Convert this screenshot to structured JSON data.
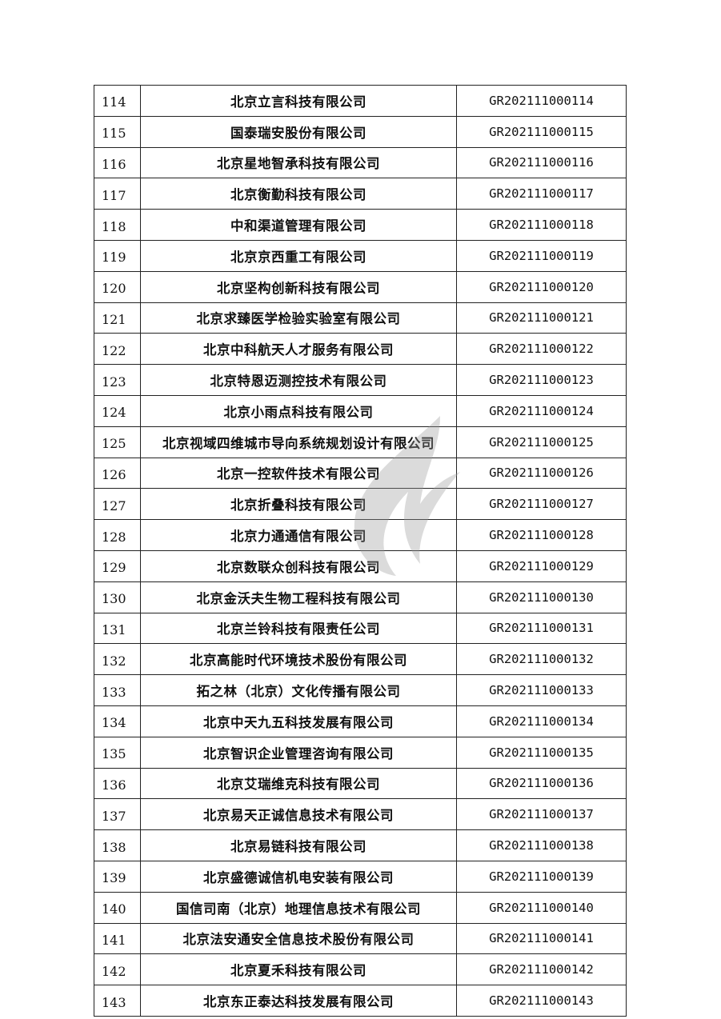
{
  "table": {
    "rows": [
      {
        "no": "114",
        "name": "北京立言科技有限公司",
        "code": "GR202111000114"
      },
      {
        "no": "115",
        "name": "国泰瑞安股份有限公司",
        "code": "GR202111000115"
      },
      {
        "no": "116",
        "name": "北京星地智承科技有限公司",
        "code": "GR202111000116"
      },
      {
        "no": "117",
        "name": "北京衡勤科技有限公司",
        "code": "GR202111000117"
      },
      {
        "no": "118",
        "name": "中和渠道管理有限公司",
        "code": "GR202111000118"
      },
      {
        "no": "119",
        "name": "北京京西重工有限公司",
        "code": "GR202111000119"
      },
      {
        "no": "120",
        "name": "北京坚构创新科技有限公司",
        "code": "GR202111000120"
      },
      {
        "no": "121",
        "name": "北京求臻医学检验实验室有限公司",
        "code": "GR202111000121"
      },
      {
        "no": "122",
        "name": "北京中科航天人才服务有限公司",
        "code": "GR202111000122"
      },
      {
        "no": "123",
        "name": "北京特恩迈测控技术有限公司",
        "code": "GR202111000123"
      },
      {
        "no": "124",
        "name": "北京小雨点科技有限公司",
        "code": "GR202111000124"
      },
      {
        "no": "125",
        "name": "北京视域四维城市导向系统规划设计有限公司",
        "code": "GR202111000125"
      },
      {
        "no": "126",
        "name": "北京一控软件技术有限公司",
        "code": "GR202111000126"
      },
      {
        "no": "127",
        "name": "北京折叠科技有限公司",
        "code": "GR202111000127"
      },
      {
        "no": "128",
        "name": "北京力通通信有限公司",
        "code": "GR202111000128"
      },
      {
        "no": "129",
        "name": "北京数联众创科技有限公司",
        "code": "GR202111000129"
      },
      {
        "no": "130",
        "name": "北京金沃夫生物工程科技有限公司",
        "code": "GR202111000130"
      },
      {
        "no": "131",
        "name": "北京兰铃科技有限责任公司",
        "code": "GR202111000131"
      },
      {
        "no": "132",
        "name": "北京高能时代环境技术股份有限公司",
        "code": "GR202111000132"
      },
      {
        "no": "133",
        "name": "拓之林（北京）文化传播有限公司",
        "code": "GR202111000133"
      },
      {
        "no": "134",
        "name": "北京中天九五科技发展有限公司",
        "code": "GR202111000134"
      },
      {
        "no": "135",
        "name": "北京智识企业管理咨询有限公司",
        "code": "GR202111000135"
      },
      {
        "no": "136",
        "name": "北京艾瑞维克科技有限公司",
        "code": "GR202111000136"
      },
      {
        "no": "137",
        "name": "北京易天正诚信息技术有限公司",
        "code": "GR202111000137"
      },
      {
        "no": "138",
        "name": "北京易链科技有限公司",
        "code": "GR202111000138"
      },
      {
        "no": "139",
        "name": "北京盛德诚信机电安装有限公司",
        "code": "GR202111000139"
      },
      {
        "no": "140",
        "name": "国信司南（北京）地理信息技术有限公司",
        "code": "GR202111000140"
      },
      {
        "no": "141",
        "name": "北京法安通安全信息技术股份有限公司",
        "code": "GR202111000141"
      },
      {
        "no": "142",
        "name": "北京夏禾科技有限公司",
        "code": "GR202111000142"
      },
      {
        "no": "143",
        "name": "北京东正泰达科技发展有限公司",
        "code": "GR202111000143"
      }
    ]
  },
  "watermark": {
    "icon": "flame-logo-icon",
    "color": "#9a9a9a"
  }
}
